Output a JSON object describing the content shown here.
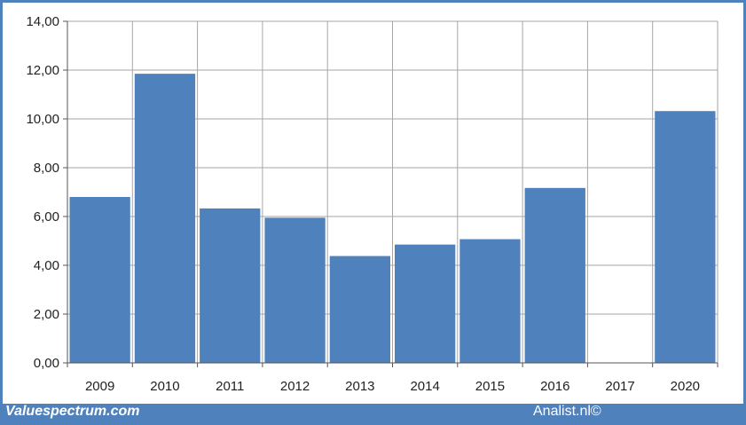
{
  "chart_data": {
    "type": "bar",
    "categories": [
      "2009",
      "2010",
      "2011",
      "2012",
      "2013",
      "2014",
      "2015",
      "2016",
      "2017",
      "2020"
    ],
    "values": [
      6.8,
      11.85,
      6.33,
      5.95,
      4.38,
      4.85,
      5.07,
      7.17,
      0,
      10.32
    ],
    "ylim": [
      0,
      14
    ],
    "yticks": [
      "0,00",
      "2,00",
      "4,00",
      "6,00",
      "8,00",
      "10,00",
      "12,00",
      "14,00"
    ],
    "grid": true,
    "bar_color": "#4f81bd",
    "grid_color": "#a6a6a6"
  },
  "footer": {
    "left": "Valuespectrum.com",
    "right": "Analist.nl©"
  },
  "colors": {
    "frame": "#4f81bd"
  }
}
